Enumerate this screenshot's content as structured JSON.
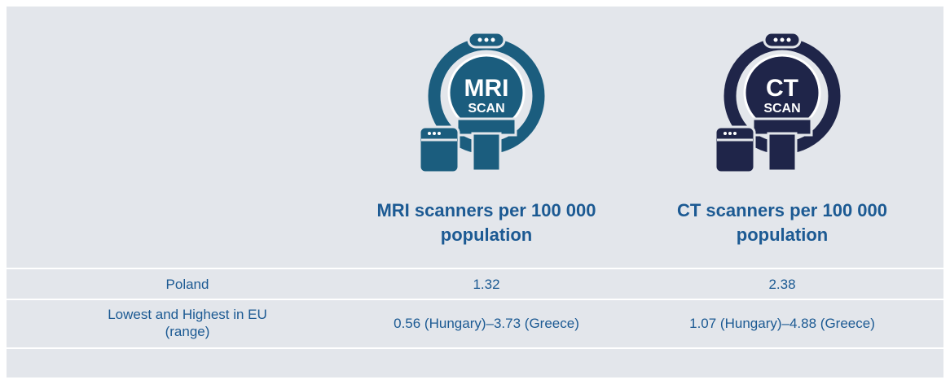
{
  "icons": [
    {
      "title": "MRI",
      "subtitle": "SCAN"
    },
    {
      "title": "CT",
      "subtitle": "SCAN"
    }
  ],
  "table": {
    "headers": [
      "MRI scanners per 100 000 population",
      "CT scanners per 100 000 population"
    ],
    "rows": [
      [
        "Poland",
        "1.32",
        "2.38"
      ],
      [
        "Lowest and Highest in EU (range)",
        "0.56 (Hungary)–3.73 (Greece)",
        "1.07 (Hungary)–4.88 (Greece)"
      ]
    ]
  }
}
